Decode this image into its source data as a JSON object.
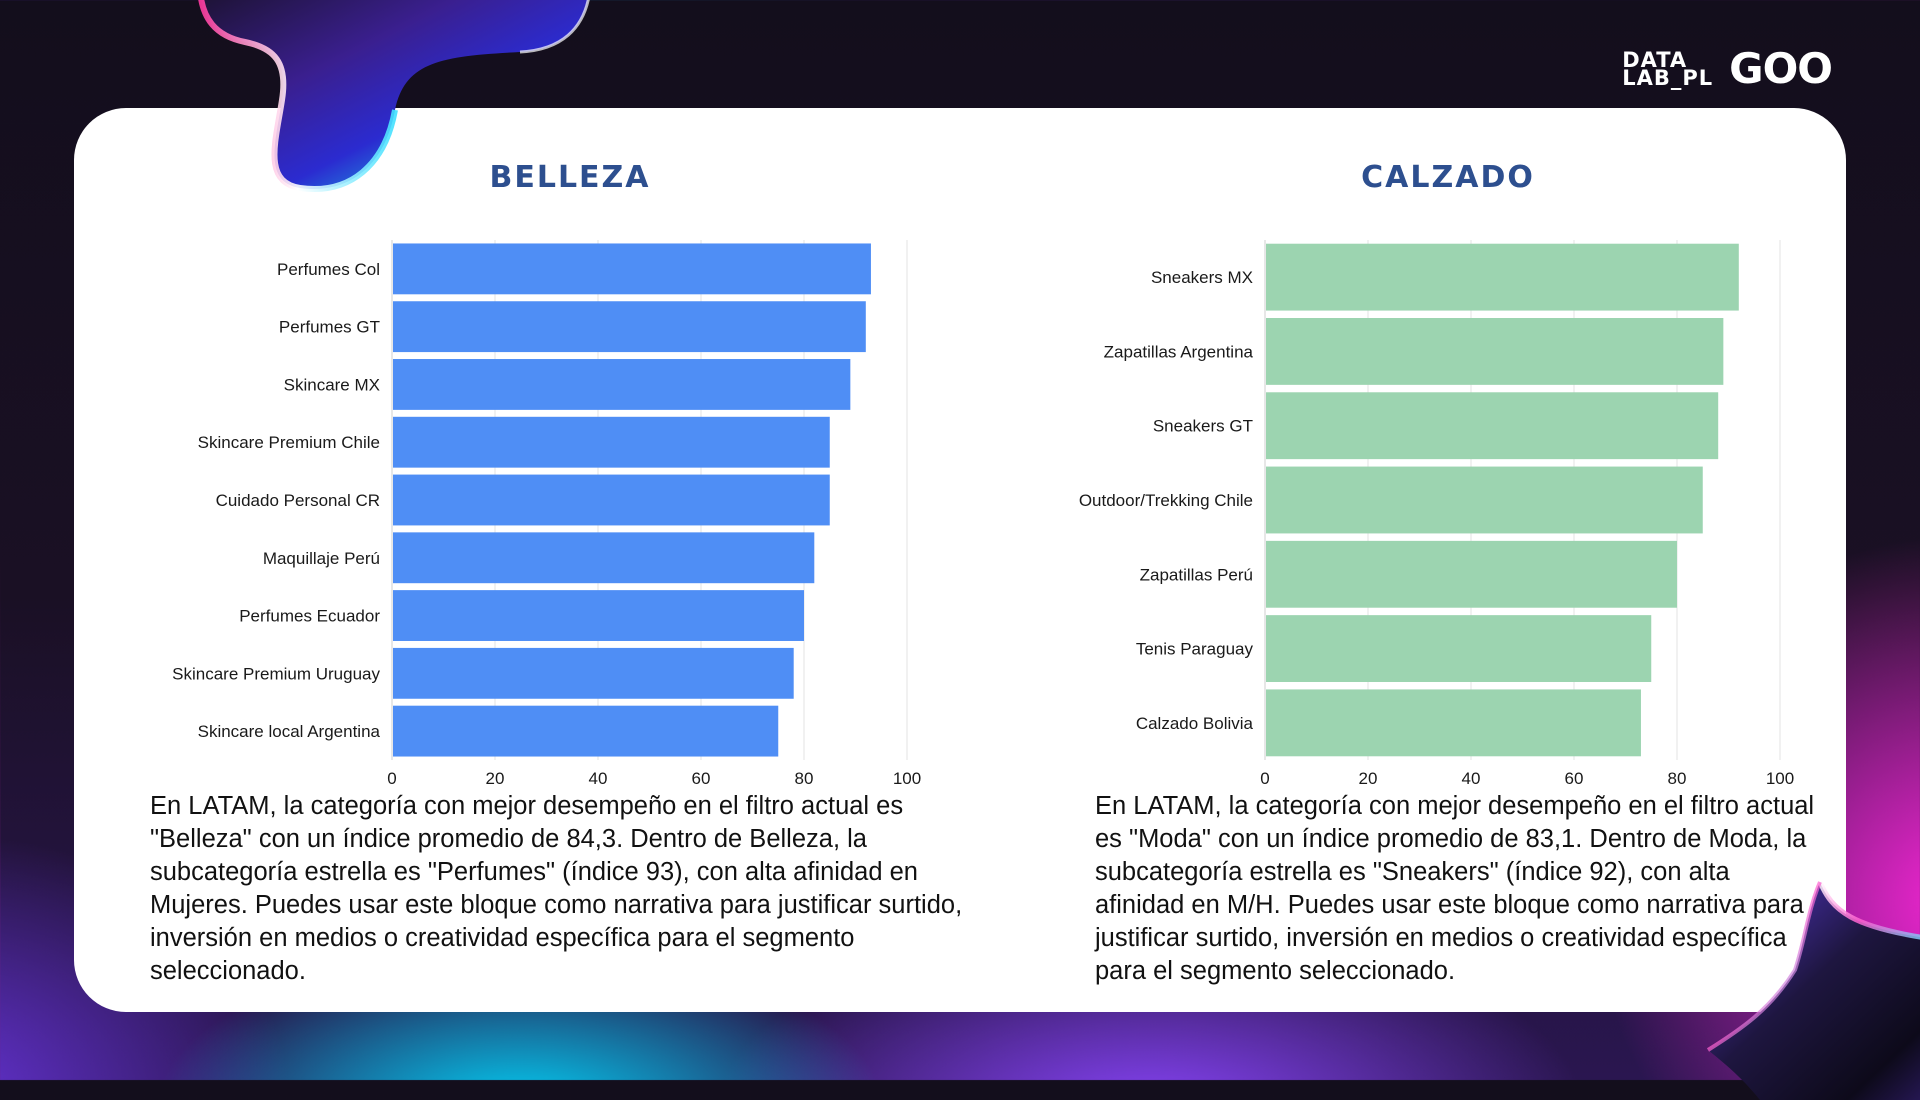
{
  "brand": {
    "datalab_line1": "DATA",
    "datalab_line2": "LAB_PL",
    "goo": "GOO"
  },
  "colors": {
    "title": "#2d4f8f",
    "belleza_bar": "#4f8ef5",
    "calzado_bar": "#9cd4b0",
    "grid": "#e3e3e3"
  },
  "chart_data": [
    {
      "type": "bar",
      "orientation": "horizontal",
      "title": "BELLEZA",
      "categories": [
        "Perfumes Col",
        "Perfumes GT",
        "Skincare MX",
        "Skincare Premium Chile",
        "Cuidado Personal CR",
        "Maquillaje Perú",
        "Perfumes Ecuador",
        "Skincare Premium Uruguay",
        "Skincare local Argentina"
      ],
      "values": [
        93,
        92,
        89,
        85,
        85,
        82,
        80,
        78,
        75
      ],
      "xlim": [
        0,
        100
      ],
      "xticks": [
        0,
        20,
        40,
        60,
        80,
        100
      ],
      "grid": "vertical",
      "color": "#4f8ef5"
    },
    {
      "type": "bar",
      "orientation": "horizontal",
      "title": "CALZADO",
      "categories": [
        "Sneakers MX",
        "Zapatillas Argentina",
        "Sneakers GT",
        "Outdoor/Trekking Chile",
        "Zapatillas Perú",
        "Tenis Paraguay",
        "Calzado Bolivia"
      ],
      "values": [
        92,
        89,
        88,
        85,
        80,
        75,
        73
      ],
      "xlim": [
        0,
        100
      ],
      "xticks": [
        0,
        20,
        40,
        60,
        80,
        100
      ],
      "grid": "vertical",
      "color": "#9cd4b0"
    }
  ],
  "narratives": {
    "belleza": "En LATAM, la categoría con mejor desempeño en el filtro actual es \"Belleza\" con un índice promedio de 84,3. Dentro de Belleza, la subcategoría estrella es \"Perfumes\" (índice 93), con alta afinidad en Mujeres. Puedes usar este bloque como narrativa para justificar surtido, inversión en medios o creatividad específica para el segmento seleccionado.",
    "calzado": "En LATAM, la categoría con mejor desempeño en el filtro actual es \"Moda\" con un índice promedio de 83,1. Dentro de Moda, la subcategoría estrella es \"Sneakers\" (índice 92), con alta afinidad en M/H. Puedes usar este bloque como narrativa para justificar surtido, inversión en medios o creatividad específica para el segmento seleccionado."
  }
}
